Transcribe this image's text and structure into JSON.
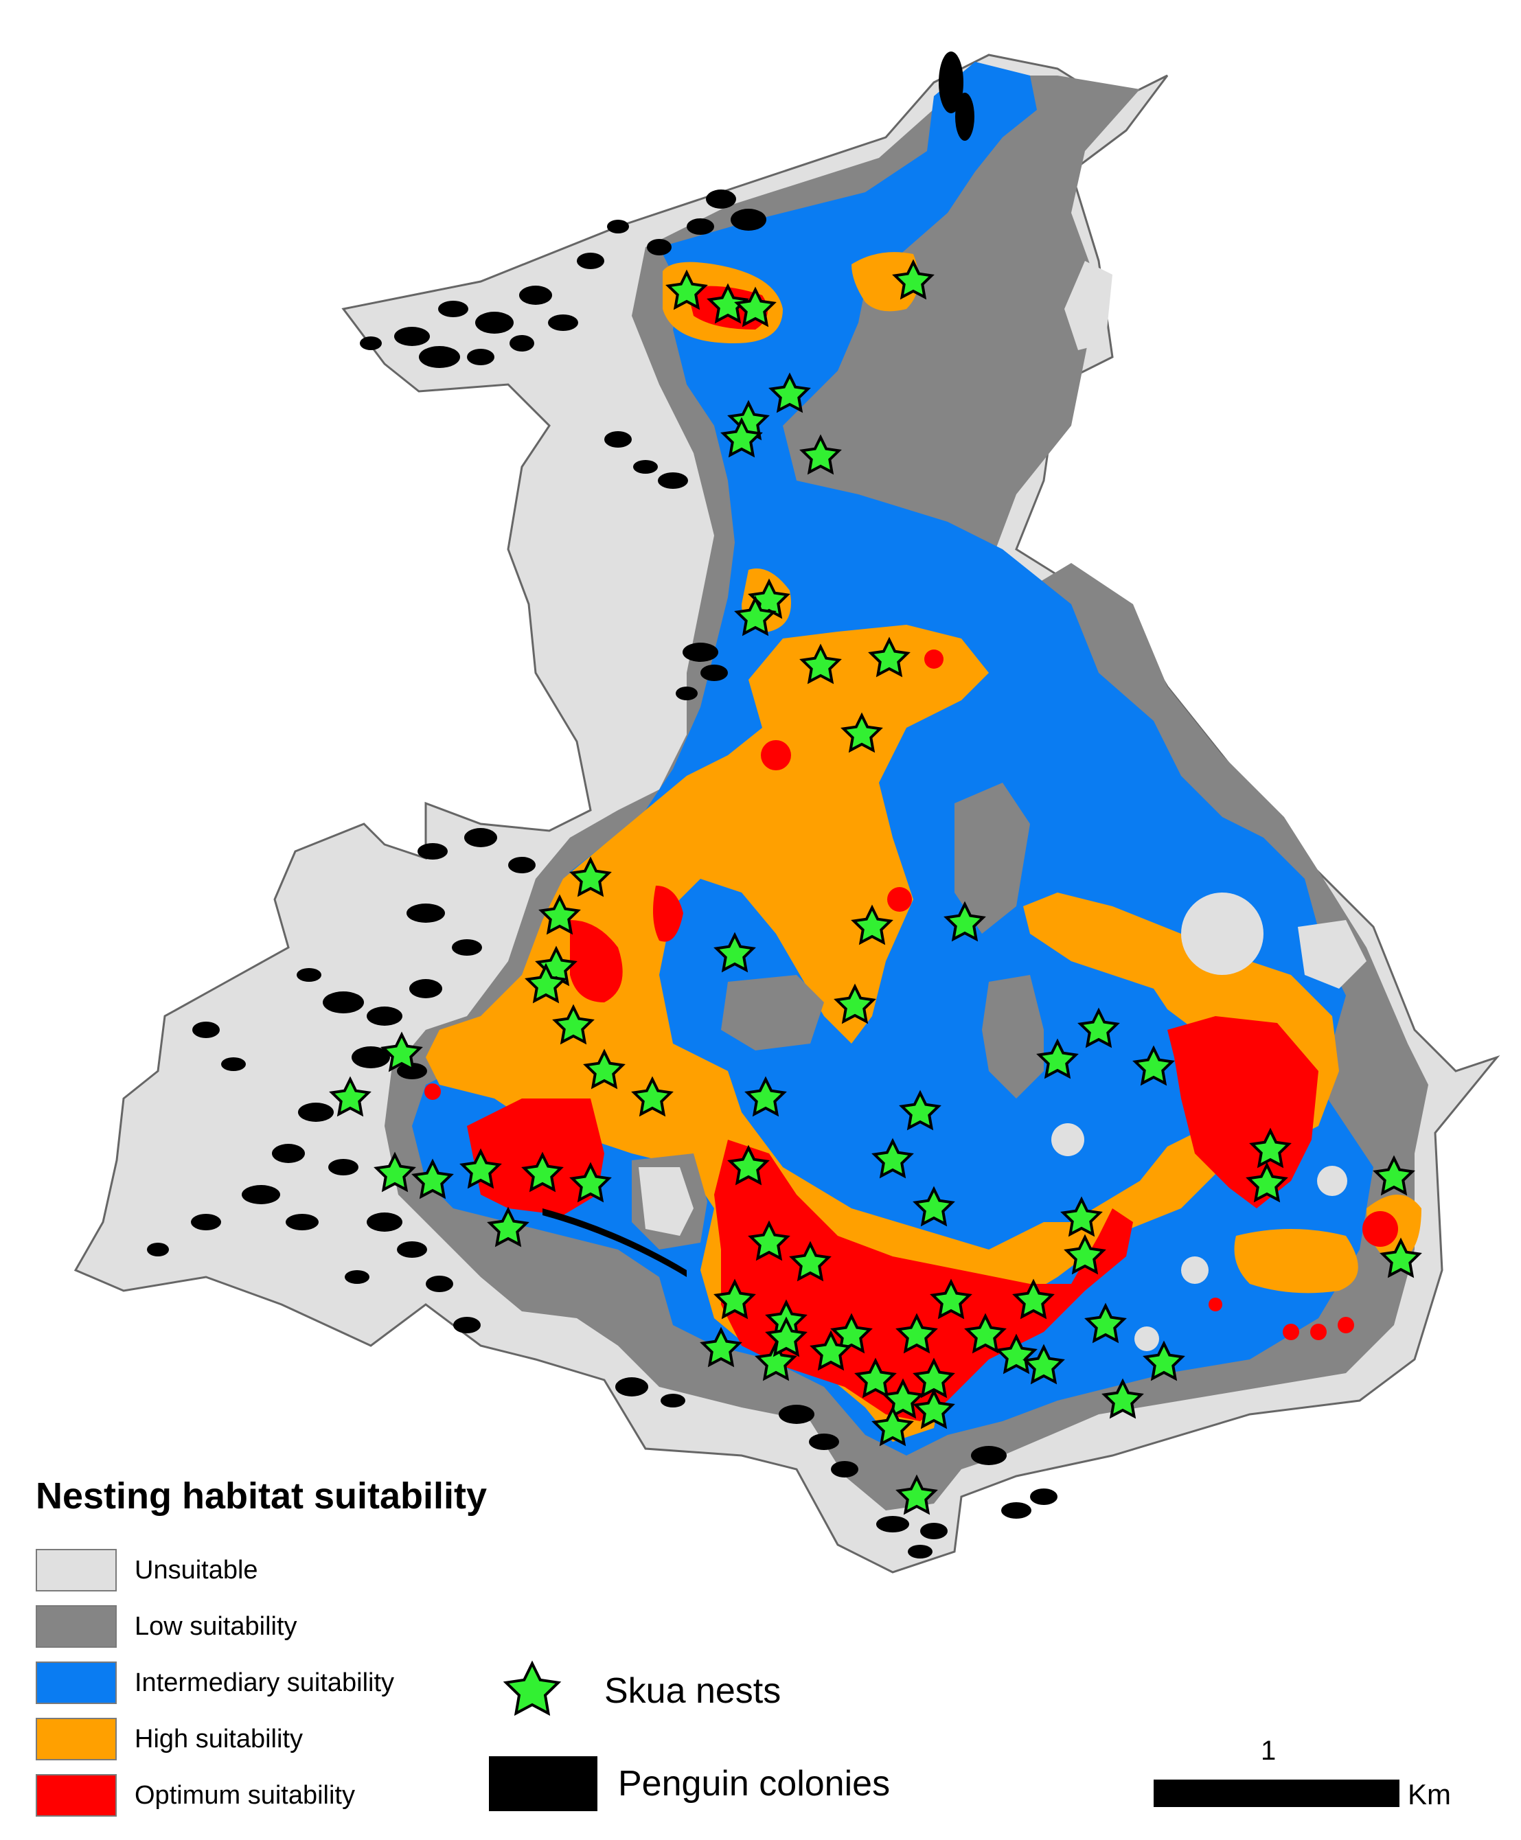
{
  "legend": {
    "title": "Nesting habitat suitability",
    "classes": [
      {
        "label": "Unsuitable",
        "color": "#e0e0e0"
      },
      {
        "label": "Low suitability",
        "color": "#858585"
      },
      {
        "label": "Intermediary suitability",
        "color": "#0a7cf2"
      },
      {
        "label": "High suitability",
        "color": "#ffa000"
      },
      {
        "label": "Optimum suitability",
        "color": "#ff0000"
      }
    ],
    "nests_label": "Skua nests",
    "nests_color": "#32f032",
    "colonies_label": "Penguin colonies",
    "colonies_color": "#000000"
  },
  "scale": {
    "value": "1",
    "unit": "Km"
  }
}
